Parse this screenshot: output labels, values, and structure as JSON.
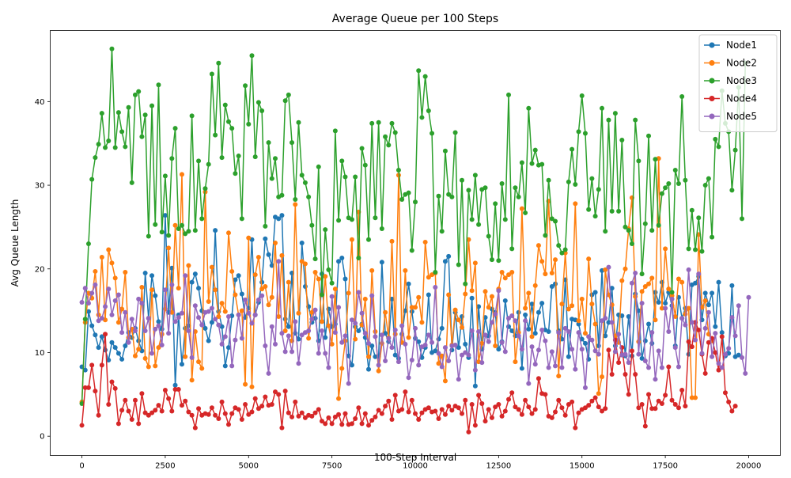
{
  "chart_data": {
    "type": "line",
    "title": "Average Queue per 100 Steps",
    "xlabel": "100-Step Interval",
    "ylabel": "Avg Queue Length",
    "xlim": [
      -950,
      20950
    ],
    "ylim": [
      -2.3,
      48.5
    ],
    "xticks": [
      0,
      2500,
      5000,
      7500,
      10000,
      12500,
      15000,
      17500,
      20000
    ],
    "xtick_labels": [
      "0",
      "2500",
      "5000",
      "7500",
      "10000",
      "12500",
      "15000",
      "17500",
      "20000"
    ],
    "yticks": [
      0,
      10,
      20,
      30,
      40
    ],
    "ytick_labels": [
      "0",
      "10",
      "20",
      "30",
      "40"
    ],
    "grid": false,
    "legend_position": "top-right",
    "x": {
      "start": 0,
      "step": 100,
      "count": 200
    },
    "series": [
      {
        "name": "Node1",
        "color": "#1f77b4",
        "values": [
          8.3,
          7.9,
          14.9,
          13.2,
          12.1,
          10.6,
          11.9,
          10.3,
          9.1,
          11.2,
          10.6,
          9.9,
          9.2,
          10.8,
          12.4,
          11.8,
          12.9,
          11.4,
          10.2,
          19.5,
          14.1,
          19.2,
          16.8,
          13.7,
          12.8,
          26.4,
          14.8,
          20.1,
          6.1,
          14.5,
          8.6,
          12.9,
          13.2,
          18.4,
          19.4,
          17.7,
          15.0,
          12.9,
          11.4,
          13.6,
          24.6,
          14.9,
          13.1,
          8.4,
          10.6,
          14.4,
          18.7,
          19.2,
          17.0,
          14.2,
          15.3,
          23.5,
          14.5,
          16.0,
          18.4,
          23.6,
          21.7,
          20.4,
          26.2,
          26.0,
          26.4,
          14.0,
          13.1,
          19.5,
          12.3,
          11.6,
          23.1,
          17.9,
          15.5,
          13.6,
          14.1,
          11.4,
          19.4,
          11.8,
          15.2,
          13.1,
          13.4,
          20.9,
          21.3,
          18.8,
          9.6,
          8.5,
          13.1,
          12.6,
          13.4,
          11.8,
          8.0,
          10.8,
          9.5,
          9.5,
          20.8,
          12.3,
          11.3,
          16.4,
          9.7,
          9.3,
          12.2,
          15.0,
          18.2,
          14.9,
          11.7,
          11.3,
          9.4,
          10.6,
          16.9,
          10.0,
          10.2,
          11.6,
          12.9,
          20.9,
          21.5,
          10.3,
          14.8,
          10.6,
          14.3,
          11.0,
          9.4,
          16.5,
          6.0,
          15.5,
          10.4,
          14.2,
          12.0,
          15.2,
          14.8,
          10.4,
          11.3,
          16.2,
          13.1,
          12.6,
          12.0,
          14.8,
          8.1,
          14.5,
          12.8,
          15.8,
          12.3,
          14.8,
          15.9,
          12.7,
          12.5,
          17.9,
          18.2,
          12.6,
          11.6,
          18.7,
          9.5,
          14.0,
          13.9,
          13.4,
          11.6,
          11.1,
          9.2,
          16.9,
          17.2,
          10.8,
          19.8,
          12.0,
          13.6,
          17.7,
          10.8,
          14.5,
          14.4,
          9.6,
          14.3,
          9.6,
          17.0,
          15.0,
          9.3,
          11.4,
          13.4,
          11.1,
          17.2,
          16.0,
          18.4,
          15.9,
          17.2,
          15.6,
          10.8,
          16.6,
          14.1,
          15.3,
          9.8,
          18.1,
          18.3,
          19.1,
          13.9,
          17.1,
          15.7,
          17.1,
          13.1,
          18.4,
          12.4,
          9.6,
          9.9,
          18.0,
          9.5,
          9.7
        ]
      },
      {
        "name": "Node2",
        "color": "#ff7f0e",
        "values": [
          4.1,
          13.6,
          17.1,
          16.5,
          19.7,
          14.5,
          21.4,
          13.9,
          22.3,
          20.7,
          18.9,
          13.6,
          15.2,
          19.6,
          11.8,
          12.8,
          9.6,
          10.4,
          17.8,
          9.3,
          8.3,
          17.5,
          8.4,
          10.6,
          12.2,
          15.2,
          22.5,
          14.8,
          25.2,
          17.7,
          31.3,
          9.5,
          20.4,
          6.7,
          12.5,
          8.9,
          8.1,
          29.2,
          16.1,
          20.2,
          17.5,
          14.3,
          15.9,
          14.9,
          24.3,
          19.7,
          16.9,
          14.5,
          15.0,
          6.2,
          23.7,
          5.9,
          19.3,
          21.4,
          17.6,
          17.9,
          15.7,
          16.6,
          23.1,
          14.3,
          21.6,
          12.6,
          18.4,
          11.4,
          27.7,
          14.7,
          20.9,
          20.6,
          11.7,
          14.8,
          19.6,
          18.8,
          13.7,
          19.1,
          13.2,
          11.0,
          17.6,
          4.5,
          8.1,
          11.4,
          17.1,
          23.5,
          11.6,
          26.8,
          13.3,
          16.4,
          9.5,
          19.8,
          12.5,
          7.8,
          11.1,
          14.8,
          11.8,
          23.3,
          12.2,
          31.2,
          11.2,
          19.8,
          11.8,
          15.4,
          15.4,
          16.6,
          13.6,
          23.2,
          19.0,
          19.3,
          19.5,
          8.7,
          9.6,
          6.6,
          16.9,
          10.9,
          15.1,
          13.9,
          13.0,
          17.0,
          23.5,
          17.4,
          20.7,
          8.9,
          11.1,
          17.3,
          15.4,
          16.7,
          10.8,
          17.6,
          19.6,
          18.9,
          19.3,
          19.6,
          8.9,
          12.4,
          27.2,
          15.3,
          17.1,
          11.9,
          18.0,
          22.8,
          20.9,
          19.4,
          28.1,
          19.5,
          21.1,
          7.2,
          15.8,
          21.9,
          15.2,
          15.6,
          27.8,
          13.8,
          16.4,
          12.3,
          21.2,
          15.8,
          13.4,
          5.1,
          7.1,
          19.9,
          16.9,
          15.7,
          12.0,
          11.2,
          18.6,
          20.0,
          24.8,
          28.5,
          16.7,
          11.3,
          17.3,
          17.9,
          18.2,
          18.9,
          13.9,
          33.2,
          15.3,
          22.4,
          17.6,
          16.8,
          14.3,
          18.8,
          18.4,
          14.6,
          15.3,
          4.6,
          4.6,
          24.1,
          15.4,
          16.2,
          12.2,
          11.4
        ]
      },
      {
        "name": "Node3",
        "color": "#2ca02c",
        "values": [
          3.9,
          14.0,
          23.0,
          30.7,
          33.3,
          34.9,
          38.6,
          34.5,
          35.3,
          46.3,
          34.5,
          38.7,
          36.4,
          34.6,
          39.3,
          30.3,
          40.8,
          41.2,
          35.8,
          38.4,
          23.9,
          39.5,
          25.3,
          42.0,
          24.4,
          31.1,
          24.0,
          33.2,
          36.8,
          24.8,
          25.2,
          24.2,
          24.5,
          38.3,
          24.6,
          32.9,
          26.0,
          29.6,
          32.5,
          43.3,
          36.0,
          44.6,
          33.3,
          39.6,
          37.6,
          36.8,
          31.4,
          33.5,
          26.0,
          41.9,
          37.3,
          45.5,
          33.4,
          39.9,
          38.9,
          25.1,
          35.1,
          30.8,
          33.2,
          28.6,
          28.8,
          40.1,
          40.8,
          35.1,
          28.3,
          37.5,
          31.2,
          30.3,
          28.6,
          25.2,
          21.2,
          32.2,
          16.9,
          24.7,
          19.9,
          18.3,
          36.5,
          25.8,
          32.9,
          31.0,
          26.1,
          25.9,
          31.0,
          21.3,
          34.4,
          32.4,
          23.5,
          37.4,
          26.1,
          37.5,
          24.8,
          35.8,
          34.8,
          37.4,
          36.3,
          31.8,
          28.3,
          28.9,
          29.1,
          22.2,
          28.0,
          43.7,
          38.1,
          43.0,
          38.9,
          36.2,
          19.6,
          28.7,
          24.5,
          34.1,
          28.9,
          28.6,
          36.3,
          20.5,
          30.6,
          18.2,
          29.4,
          25.9,
          31.2,
          25.3,
          29.5,
          29.7,
          23.9,
          21.1,
          27.8,
          21.0,
          30.2,
          25.9,
          40.8,
          22.4,
          29.7,
          28.6,
          32.7,
          26.7,
          39.2,
          32.6,
          34.2,
          32.4,
          32.5,
          24.0,
          30.6,
          26.0,
          25.7,
          22.8,
          21.9,
          22.3,
          30.4,
          34.3,
          30.1,
          36.4,
          40.7,
          36.2,
          27.1,
          30.8,
          26.3,
          29.5,
          39.2,
          24.5,
          37.8,
          26.9,
          38.6,
          26.9,
          35.4,
          25.0,
          24.6,
          23.0,
          37.8,
          32.9,
          19.4,
          25.4,
          35.9,
          24.6,
          33.1,
          25.2,
          29.0,
          29.7,
          30.2,
          17.2,
          31.8,
          30.2,
          40.6,
          30.6,
          22.4,
          27.0,
          22.3,
          26.1,
          22.1,
          30.0,
          30.8,
          23.8,
          35.5,
          34.6,
          41.3,
          37.4,
          36.4,
          29.4,
          34.2,
          41.7,
          26.0,
          44.6
        ]
      },
      {
        "name": "Node4",
        "color": "#d62728",
        "values": [
          1.3,
          5.8,
          5.8,
          8.5,
          5.4,
          2.5,
          8.5,
          12.2,
          3.8,
          6.5,
          5.7,
          1.5,
          3.1,
          4.3,
          3.0,
          2.0,
          4.3,
          1.5,
          5.1,
          2.8,
          2.5,
          2.8,
          3.1,
          3.7,
          3.0,
          5.5,
          4.5,
          3.0,
          5.6,
          5.6,
          3.7,
          4.2,
          2.9,
          2.5,
          1.0,
          3.3,
          2.5,
          2.7,
          2.6,
          3.4,
          2.5,
          2.1,
          4.1,
          2.7,
          1.4,
          2.7,
          3.4,
          3.2,
          2.0,
          3.8,
          2.6,
          2.9,
          4.5,
          3.3,
          3.6,
          4.7,
          3.7,
          3.8,
          5.3,
          5.0,
          1.0,
          5.4,
          2.8,
          2.3,
          4.1,
          2.4,
          2.8,
          2.2,
          2.5,
          2.4,
          2.8,
          3.2,
          1.8,
          1.5,
          2.2,
          1.5,
          2.3,
          2.6,
          1.4,
          2.7,
          1.4,
          1.5,
          2.1,
          3.4,
          1.5,
          2.7,
          1.3,
          1.9,
          2.3,
          3.1,
          2.7,
          3.6,
          4.2,
          2.0,
          4.9,
          3.0,
          3.2,
          5.3,
          2.9,
          4.3,
          2.7,
          2.0,
          2.8,
          3.2,
          3.4,
          2.9,
          3.0,
          2.1,
          3.2,
          2.6,
          3.6,
          3.1,
          3.6,
          3.4,
          2.7,
          4.3,
          0.5,
          3.8,
          1.3,
          4.9,
          3.9,
          1.8,
          3.2,
          2.2,
          3.5,
          3.8,
          2.4,
          3.0,
          4.4,
          5.2,
          3.5,
          3.2,
          2.6,
          4.3,
          3.5,
          2.7,
          3.2,
          6.9,
          5.1,
          5.0,
          2.4,
          2.2,
          2.9,
          4.3,
          3.4,
          2.5,
          3.8,
          4.1,
          1.0,
          2.8,
          3.2,
          3.4,
          3.7,
          4.2,
          4.6,
          3.5,
          3.0,
          3.3,
          10.3,
          7.4,
          11.5,
          8.8,
          10.6,
          7.4,
          5.0,
          10.2,
          7.4,
          3.4,
          3.8,
          1.2,
          5.0,
          3.3,
          3.3,
          4.2,
          3.9,
          4.9,
          8.3,
          4.3,
          3.8,
          3.4,
          5.5,
          3.6,
          11.3,
          10.7,
          13.6,
          12.7,
          9.8,
          7.5,
          11.2,
          11.7,
          10.0,
          7.9,
          11.9,
          5.2,
          4.1,
          3.0,
          3.6
        ]
      },
      {
        "name": "Node5",
        "color": "#9467bd",
        "values": [
          16.0,
          17.7,
          15.9,
          17.1,
          18.1,
          13.8,
          14.1,
          15.5,
          17.6,
          14.5,
          16.2,
          16.9,
          12.4,
          14.8,
          11.2,
          14.0,
          12.6,
          16.4,
          15.9,
          12.6,
          14.1,
          9.9,
          12.8,
          13.2,
          10.9,
          17.5,
          12.3,
          18.1,
          13.7,
          14.2,
          14.7,
          19.2,
          12.6,
          9.4,
          15.6,
          14.2,
          13.3,
          14.8,
          14.9,
          15.3,
          14.0,
          13.3,
          11.0,
          11.9,
          14.3,
          8.4,
          11.5,
          14.5,
          11.7,
          16.3,
          14.7,
          13.5,
          14.5,
          16.3,
          16.8,
          10.8,
          7.5,
          13.1,
          11.0,
          20.9,
          12.3,
          10.1,
          12.0,
          10.1,
          13.7,
          8.7,
          12.1,
          12.4,
          12.6,
          14.0,
          15.1,
          9.9,
          12.6,
          9.9,
          8.2,
          16.7,
          12.4,
          15.4,
          11.2,
          12.0,
          6.3,
          13.9,
          13.5,
          17.2,
          14.7,
          12.3,
          11.1,
          16.8,
          11.9,
          8.5,
          12.1,
          9.0,
          11.7,
          10.6,
          12.7,
          8.9,
          13.2,
          11.0,
          7.0,
          9.1,
          12.9,
          8.5,
          10.7,
          10.9,
          12.1,
          11.2,
          17.8,
          9.9,
          8.3,
          10.6,
          9.0,
          10.8,
          10.9,
          6.8,
          9.7,
          10.0,
          9.7,
          12.6,
          7.9,
          12.5,
          8.8,
          12.1,
          11.3,
          13.6,
          14.6,
          17.4,
          11.2,
          10.1,
          14.1,
          14.4,
          13.8,
          12.0,
          10.4,
          13.8,
          6.3,
          10.7,
          8.6,
          10.3,
          12.7,
          11.4,
          8.2,
          10.1,
          8.4,
          12.4,
          8.2,
          12.9,
          12.5,
          10.4,
          8.0,
          12.4,
          10.4,
          5.8,
          11.9,
          11.5,
          10.2,
          9.8,
          13.8,
          14.1,
          20.2,
          13.6,
          10.1,
          12.2,
          9.7,
          9.8,
          8.8,
          18.3,
          19.5,
          9.8,
          15.9,
          9.0,
          8.2,
          12.4,
          6.8,
          10.2,
          8.2,
          15.3,
          12.5,
          16.4,
          10.6,
          8.3,
          14.1,
          13.3,
          19.9,
          13.6,
          11.5,
          19.4,
          9.9,
          12.9,
          14.8,
          9.5,
          12.3,
          8.7,
          8.2,
          9.8,
          10.5,
          14.2,
          12.0,
          15.6,
          9.4,
          7.5,
          16.6
        ]
      }
    ]
  }
}
